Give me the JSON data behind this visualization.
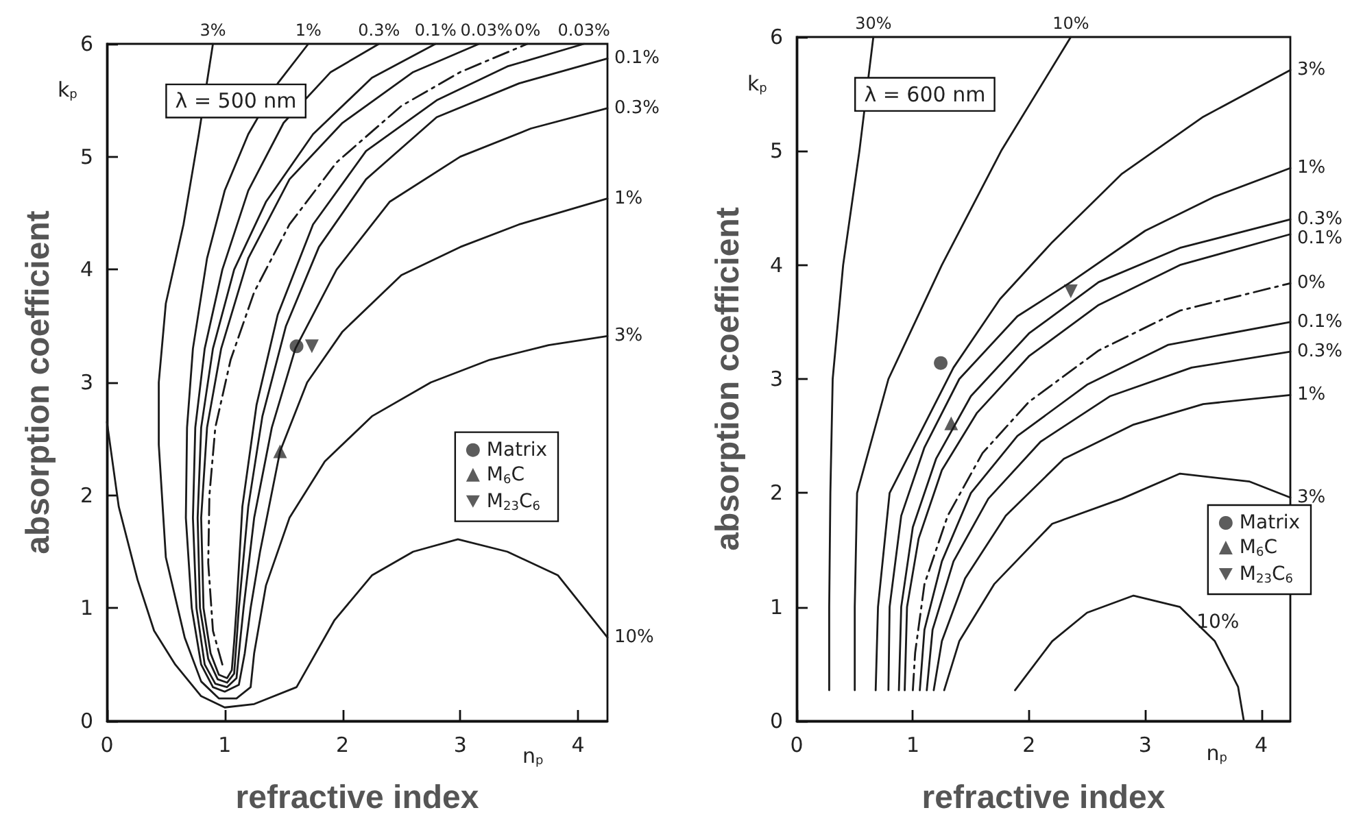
{
  "chart_data": [
    {
      "type": "line",
      "xlabel": "refractive index",
      "ylabel": "absorption coefficient",
      "xlim": [
        0,
        4.25
      ],
      "ylim": [
        0,
        6
      ],
      "xticks": [
        0,
        1,
        2,
        3,
        4
      ],
      "yticks": [
        0,
        1,
        2,
        3,
        4,
        5,
        6
      ],
      "grid": false,
      "legend": "center right",
      "marker": "none",
      "annotations": [
        "λ = 500 nm",
        "k$_{p}$",
        "n$_{p}$",
        {
          "text": "3%",
          "x": 0.9,
          "y": 6
        },
        {
          "text": "1%",
          "x": 1.71,
          "y": 6
        },
        {
          "text": "0.3%",
          "x": 2.31,
          "y": 6
        },
        {
          "text": "0.1%",
          "x": 2.79,
          "y": 6
        },
        {
          "text": "0.03%",
          "x": 3.16,
          "y": 6
        },
        {
          "text": "0%",
          "x": 3.57,
          "y": 6
        },
        {
          "text": "0.03%",
          "x": 4.05,
          "y": 6
        },
        {
          "text": "0.1%",
          "x": 4.25,
          "y": 5.87
        },
        {
          "text": "0.3%",
          "x": 4.25,
          "y": 5.43
        },
        {
          "text": "1%",
          "x": 4.25,
          "y": 4.63
        },
        {
          "text": "3%",
          "x": 4.25,
          "y": 3.41
        },
        {
          "text": "10%",
          "x": 4.25,
          "y": 0.74
        }
      ],
      "series": [
        {
          "type": "line",
          "color": "#1a1a1a",
          "x": [
            0,
            0.1,
            0.26,
            0.4,
            0.58,
            0.8,
            1.0,
            1.25,
            1.61,
            1.93,
            2.25,
            2.6,
            2.98,
            3.4,
            3.83,
            4.25
          ],
          "values": [
            2.65,
            1.9,
            1.25,
            0.8,
            0.5,
            0.22,
            0.12,
            0.15,
            0.3,
            0.89,
            1.29,
            1.5,
            1.61,
            1.5,
            1.29,
            0.74
          ]
        },
        {
          "type": "line",
          "color": "#1a1a1a",
          "x": [
            0.9,
            0.78,
            0.65,
            0.5,
            0.44,
            0.44,
            0.5,
            0.66,
            0.8,
            0.95,
            1.1,
            1.22,
            1.25,
            1.35,
            1.55,
            1.85,
            2.25,
            2.75,
            3.25,
            3.75,
            4.25
          ],
          "values": [
            6,
            5.2,
            4.4,
            3.7,
            3.0,
            2.45,
            1.45,
            0.74,
            0.35,
            0.2,
            0.2,
            0.3,
            0.6,
            1.2,
            1.8,
            2.3,
            2.7,
            3.0,
            3.2,
            3.33,
            3.41
          ]
        },
        {
          "type": "line",
          "color": "#1a1a1a",
          "x": [
            1.71,
            1.45,
            1.2,
            1.0,
            0.85,
            0.73,
            0.68,
            0.67,
            0.72,
            0.8,
            0.9,
            1.0,
            1.12,
            1.17,
            1.22,
            1.3,
            1.47,
            1.7,
            2.0,
            2.5,
            3.0,
            3.5,
            4.25
          ],
          "values": [
            6,
            5.65,
            5.2,
            4.7,
            4.1,
            3.3,
            2.6,
            1.8,
            1.0,
            0.5,
            0.3,
            0.26,
            0.32,
            0.6,
            1.0,
            1.5,
            2.39,
            3.0,
            3.45,
            3.95,
            4.2,
            4.4,
            4.63
          ]
        },
        {
          "type": "line",
          "color": "#1a1a1a",
          "x": [
            2.31,
            1.9,
            1.5,
            1.2,
            0.98,
            0.83,
            0.75,
            0.73,
            0.76,
            0.83,
            0.92,
            1.02,
            1.1,
            1.13,
            1.16,
            1.25,
            1.4,
            1.6,
            1.95,
            2.4,
            3.0,
            3.6,
            4.25
          ],
          "values": [
            6,
            5.75,
            5.3,
            4.7,
            4.0,
            3.3,
            2.6,
            1.8,
            1.0,
            0.5,
            0.33,
            0.3,
            0.38,
            0.7,
            1.0,
            1.8,
            2.6,
            3.3,
            4.0,
            4.6,
            5.0,
            5.25,
            5.43
          ]
        },
        {
          "type": "line",
          "color": "#1a1a1a",
          "x": [
            2.79,
            2.25,
            1.75,
            1.35,
            1.08,
            0.9,
            0.8,
            0.77,
            0.79,
            0.86,
            0.94,
            1.02,
            1.08,
            1.1,
            1.12,
            1.2,
            1.32,
            1.52,
            1.8,
            2.2,
            2.8,
            3.5,
            4.25
          ],
          "values": [
            6,
            5.7,
            5.2,
            4.6,
            4.0,
            3.3,
            2.6,
            1.8,
            1.0,
            0.55,
            0.37,
            0.34,
            0.42,
            0.7,
            1.0,
            1.9,
            2.7,
            3.5,
            4.2,
            4.8,
            5.35,
            5.65,
            5.87
          ]
        },
        {
          "type": "line",
          "color": "#1a1a1a",
          "x": [
            3.16,
            2.6,
            2.0,
            1.55,
            1.2,
            0.97,
            0.85,
            0.8,
            0.82,
            0.88,
            0.95,
            1.02,
            1.06,
            1.08,
            1.1,
            1.15,
            1.27,
            1.45,
            1.75,
            2.2,
            2.8,
            3.4,
            4.05
          ],
          "values": [
            6,
            5.75,
            5.3,
            4.8,
            4.1,
            3.3,
            2.6,
            1.8,
            1.0,
            0.6,
            0.41,
            0.38,
            0.45,
            0.7,
            1.0,
            1.9,
            2.8,
            3.6,
            4.4,
            5.05,
            5.5,
            5.8,
            6
          ]
        },
        {
          "type": "line",
          "color": "#1a1a1a",
          "line_style": "dashed",
          "x": [
            0.98,
            0.9,
            0.86,
            0.87,
            0.92,
            1.05,
            1.25,
            1.55,
            1.95,
            2.5,
            3.0,
            3.57
          ],
          "values": [
            0.5,
            0.8,
            1.4,
            2.0,
            2.6,
            3.2,
            3.8,
            4.4,
            4.95,
            5.45,
            5.75,
            6
          ]
        },
        {
          "type": "scatter",
          "name": "Matrix",
          "marker": "circle",
          "color": "#333333",
          "x": [
            1.61
          ],
          "values": [
            3.32
          ]
        },
        {
          "type": "scatter",
          "name": "M$_{6}$C",
          "marker": "triangle",
          "color": "#333333",
          "x": [
            1.47
          ],
          "values": [
            2.39
          ]
        },
        {
          "type": "scatter",
          "name": "M$_{23}$C$_{6}$",
          "marker": "triangle-down",
          "color": "#333333",
          "x": [
            1.74
          ],
          "values": [
            3.32
          ]
        }
      ]
    },
    {
      "type": "line",
      "xlabel": "refractive index",
      "ylabel": "absorption coefficient",
      "xlim": [
        0,
        4.25
      ],
      "ylim": [
        0,
        6
      ],
      "xticks": [
        0,
        1,
        2,
        3,
        4
      ],
      "yticks": [
        0,
        1,
        2,
        3,
        4,
        5,
        6
      ],
      "grid": false,
      "legend": "bottom right",
      "marker": "none",
      "annotations": [
        "λ = 600 nm",
        "k$_{p}$",
        "n$_{p}$",
        {
          "text": "30%",
          "x": 0.66,
          "y": 6
        },
        {
          "text": "10%",
          "x": 2.36,
          "y": 6
        },
        {
          "text": "3%",
          "x": 4.25,
          "y": 5.71
        },
        {
          "text": "1%",
          "x": 4.25,
          "y": 4.85
        },
        {
          "text": "0.3%",
          "x": 4.25,
          "y": 4.4
        },
        {
          "text": "0.1%",
          "x": 4.25,
          "y": 4.27
        },
        {
          "text": "0%",
          "x": 4.25,
          "y": 3.84
        },
        {
          "text": "0.1%",
          "x": 4.25,
          "y": 3.5
        },
        {
          "text": "0.3%",
          "x": 4.25,
          "y": 3.24
        },
        {
          "text": "1%",
          "x": 4.25,
          "y": 2.86
        },
        {
          "text": "3%",
          "x": 4.25,
          "y": 1.96
        },
        "10%"
      ],
      "series": [
        {
          "type": "line",
          "color": "#1a1a1a",
          "x": [
            0.28,
            0.28,
            0.29,
            0.31,
            0.4,
            0.54,
            0.66
          ],
          "values": [
            0.27,
            1,
            2,
            3,
            4,
            5,
            6
          ]
        },
        {
          "type": "line",
          "color": "#1a1a1a",
          "x": [
            0.5,
            0.5,
            0.52,
            0.79,
            1.25,
            1.76,
            2.36
          ],
          "values": [
            0.27,
            1,
            2,
            3,
            4,
            5,
            6
          ]
        },
        {
          "type": "line",
          "color": "#1a1a1a",
          "x": [
            0.68,
            0.7,
            0.8,
            1.1,
            1.35,
            1.75,
            2.2,
            2.8,
            3.5,
            4.25
          ],
          "values": [
            0.27,
            1,
            2,
            2.6,
            3.1,
            3.7,
            4.2,
            4.8,
            5.3,
            5.71
          ]
        },
        {
          "type": "line",
          "color": "#1a1a1a",
          "x": [
            0.79,
            0.8,
            0.9,
            1.1,
            1.4,
            1.9,
            2.36,
            3.0,
            3.6,
            4.25
          ],
          "values": [
            0.27,
            1,
            1.8,
            2.4,
            3.0,
            3.55,
            3.85,
            4.3,
            4.6,
            4.85
          ]
        },
        {
          "type": "line",
          "color": "#1a1a1a",
          "x": [
            0.88,
            0.9,
            1.0,
            1.2,
            1.5,
            2.0,
            2.6,
            3.3,
            4.25
          ],
          "values": [
            0.27,
            1,
            1.7,
            2.3,
            2.85,
            3.4,
            3.85,
            4.15,
            4.4
          ]
        },
        {
          "type": "line",
          "color": "#1a1a1a",
          "x": [
            0.93,
            0.95,
            1.05,
            1.25,
            1.55,
            2.0,
            2.6,
            3.3,
            4.25
          ],
          "values": [
            0.27,
            1,
            1.6,
            2.2,
            2.7,
            3.2,
            3.65,
            4.0,
            4.27
          ]
        },
        {
          "type": "line",
          "color": "#1a1a1a",
          "line_style": "dashed",
          "x": [
            1.0,
            1.02,
            1.1,
            1.3,
            1.6,
            2.0,
            2.6,
            3.3,
            4.25
          ],
          "values": [
            0.27,
            0.6,
            1.2,
            1.8,
            2.35,
            2.8,
            3.25,
            3.6,
            3.84
          ]
        },
        {
          "type": "line",
          "color": "#1a1a1a",
          "x": [
            1.06,
            1.1,
            1.25,
            1.5,
            1.9,
            2.5,
            3.2,
            4.25
          ],
          "values": [
            0.27,
            0.8,
            1.4,
            2.0,
            2.5,
            2.95,
            3.3,
            3.5
          ]
        },
        {
          "type": "line",
          "color": "#1a1a1a",
          "x": [
            1.12,
            1.17,
            1.35,
            1.65,
            2.1,
            2.7,
            3.4,
            4.25
          ],
          "values": [
            0.27,
            0.8,
            1.4,
            1.95,
            2.45,
            2.85,
            3.1,
            3.24
          ]
        },
        {
          "type": "line",
          "color": "#1a1a1a",
          "x": [
            1.18,
            1.25,
            1.45,
            1.8,
            2.3,
            2.9,
            3.5,
            4.25
          ],
          "values": [
            0.27,
            0.7,
            1.25,
            1.8,
            2.3,
            2.6,
            2.78,
            2.86
          ]
        },
        {
          "type": "line",
          "color": "#1a1a1a",
          "x": [
            1.27,
            1.4,
            1.7,
            2.2,
            2.8,
            3.3,
            3.9,
            4.25
          ],
          "values": [
            0.27,
            0.7,
            1.2,
            1.73,
            1.95,
            2.17,
            2.1,
            1.96
          ]
        },
        {
          "type": "line",
          "color": "#1a1a1a",
          "x": [
            1.88,
            2.2,
            2.5,
            2.9,
            3.3,
            3.6,
            3.8,
            3.85
          ],
          "values": [
            0.27,
            0.7,
            0.95,
            1.1,
            1.0,
            0.7,
            0.3,
            0
          ]
        },
        {
          "type": "scatter",
          "name": "Matrix",
          "marker": "circle",
          "color": "#333333",
          "x": [
            1.24
          ],
          "values": [
            3.14
          ]
        },
        {
          "type": "scatter",
          "name": "M$_{6}$C",
          "marker": "triangle",
          "color": "#333333",
          "x": [
            1.33
          ],
          "values": [
            2.61
          ]
        },
        {
          "type": "scatter",
          "name": "M$_{23}$C$_{6}$",
          "marker": "triangle-down",
          "color": "#333333",
          "x": [
            2.36
          ],
          "values": [
            3.77
          ]
        }
      ]
    }
  ]
}
